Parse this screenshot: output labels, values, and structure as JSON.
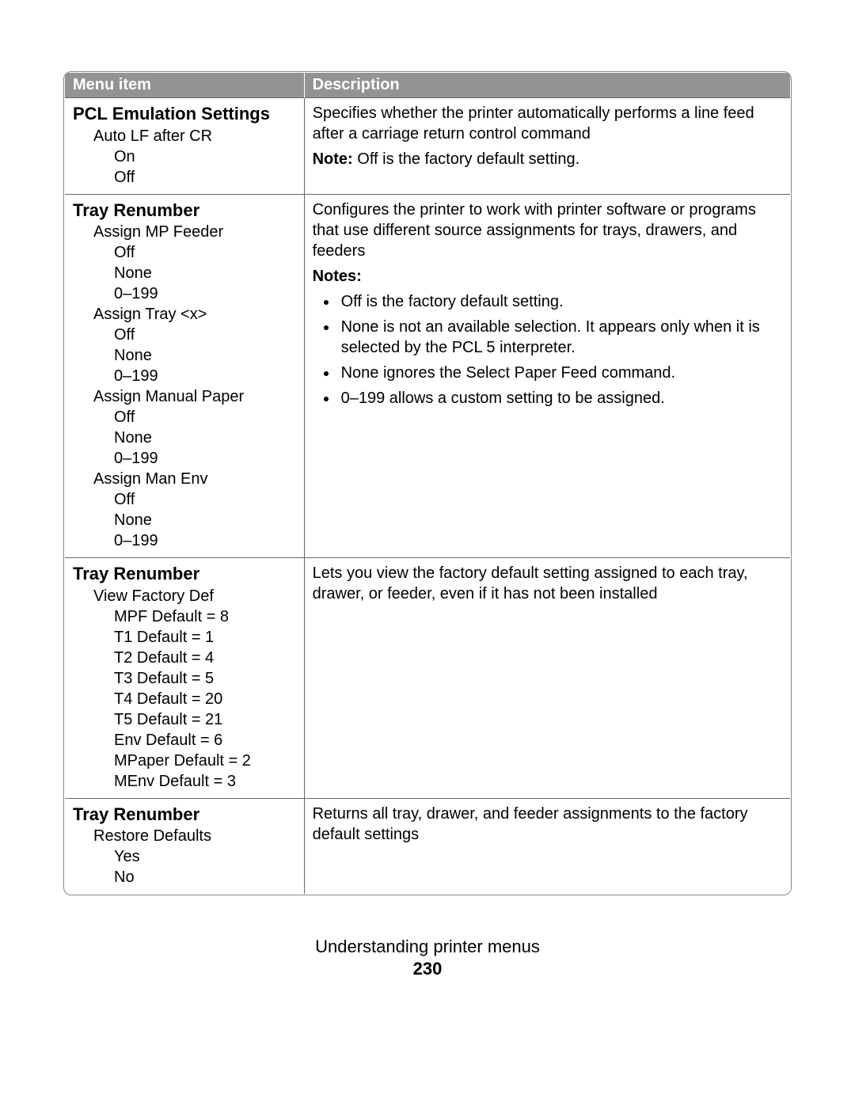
{
  "header": {
    "col1": "Menu item",
    "col2": "Description"
  },
  "rows": [
    {
      "title": "PCL Emulation Settings",
      "menu": [
        {
          "text": "Auto LF after CR",
          "level": 1
        },
        {
          "text": "On",
          "level": 2
        },
        {
          "text": "Off",
          "level": 2
        }
      ],
      "desc": {
        "para": "Specifies whether the printer automatically performs a line feed after a carriage return control command",
        "note_label": "Note:",
        "note_inline": " Off is the factory default setting."
      }
    },
    {
      "title": "Tray Renumber",
      "menu": [
        {
          "text": "Assign MP Feeder",
          "level": 1
        },
        {
          "text": "Off",
          "level": 2
        },
        {
          "text": "None",
          "level": 2
        },
        {
          "text": "0–199",
          "level": 2
        },
        {
          "text": "Assign Tray <x>",
          "level": 1
        },
        {
          "text": "Off",
          "level": 2
        },
        {
          "text": "None",
          "level": 2
        },
        {
          "text": "0–199",
          "level": 2
        },
        {
          "text": "Assign Manual Paper",
          "level": 1
        },
        {
          "text": "Off",
          "level": 2
        },
        {
          "text": "None",
          "level": 2
        },
        {
          "text": "0–199",
          "level": 2
        },
        {
          "text": "Assign Man Env",
          "level": 1
        },
        {
          "text": "Off",
          "level": 2
        },
        {
          "text": "None",
          "level": 2
        },
        {
          "text": "0–199",
          "level": 2
        }
      ],
      "desc": {
        "para": "Configures the printer to work with printer software or programs that use different source assignments for trays, drawers, and feeders",
        "notes_label": "Notes:",
        "bullets": [
          "Off is the factory default setting.",
          "None is not an available selection. It appears only when it is selected by the PCL 5 interpreter.",
          "None ignores the Select Paper Feed command.",
          "0–199 allows a custom setting to be assigned."
        ]
      }
    },
    {
      "title": "Tray Renumber",
      "menu": [
        {
          "text": "View Factory Def",
          "level": 1
        },
        {
          "text": "MPF Default = 8",
          "level": 2
        },
        {
          "text": "T1 Default = 1",
          "level": 2
        },
        {
          "text": "T2 Default = 4",
          "level": 2
        },
        {
          "text": "T3 Default = 5",
          "level": 2
        },
        {
          "text": "T4 Default = 20",
          "level": 2
        },
        {
          "text": "T5 Default = 21",
          "level": 2
        },
        {
          "text": "Env Default = 6",
          "level": 2
        },
        {
          "text": "MPaper Default = 2",
          "level": 2
        },
        {
          "text": "MEnv Default = 3",
          "level": 2
        }
      ],
      "desc": {
        "para": "Lets you view the factory default setting assigned to each tray, drawer, or feeder, even if it has not been installed"
      }
    },
    {
      "title": "Tray Renumber",
      "menu": [
        {
          "text": "Restore Defaults",
          "level": 1
        },
        {
          "text": "Yes",
          "level": 2
        },
        {
          "text": "No",
          "level": 2
        }
      ],
      "desc": {
        "para": "Returns all tray, drawer, and feeder assignments to the factory default settings"
      }
    }
  ],
  "footer": {
    "section": "Understanding printer menus",
    "page": "230"
  },
  "colors": {
    "header_bg": "#939393",
    "header_text": "#ffffff",
    "border": "#666666",
    "text": "#000000",
    "background": "#ffffff"
  }
}
